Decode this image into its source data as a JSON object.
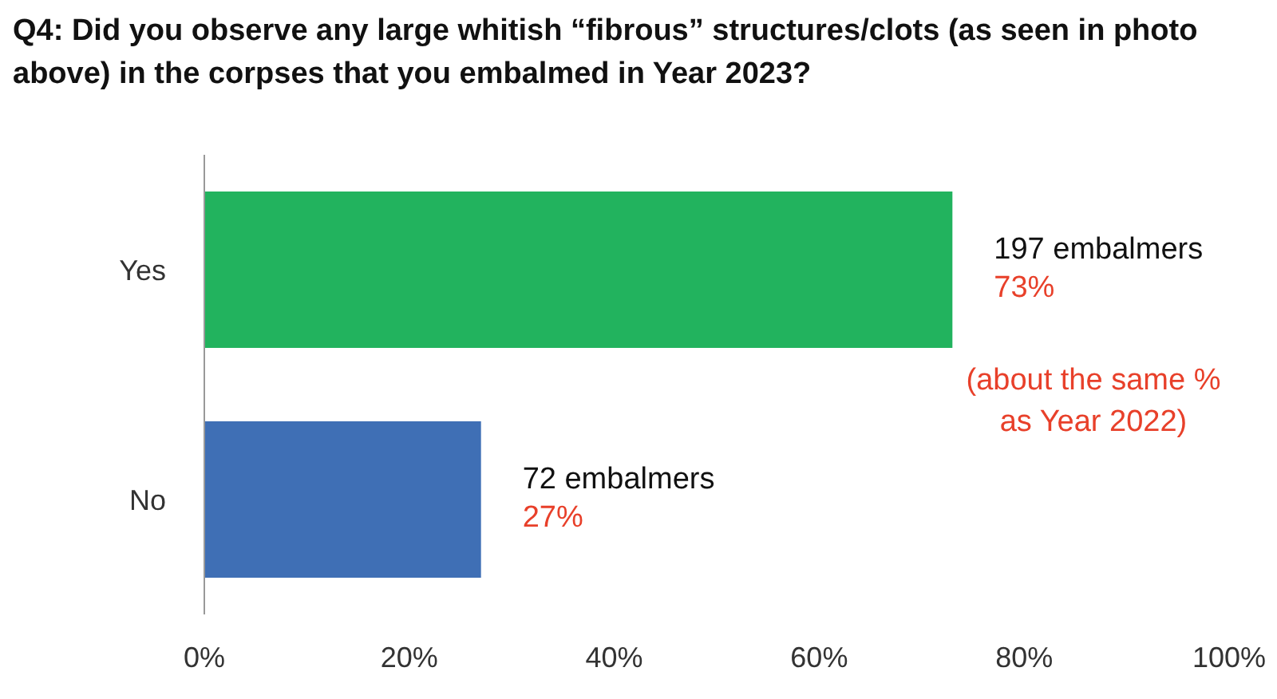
{
  "chart_data": {
    "type": "bar",
    "orientation": "horizontal",
    "title": "Q4: Did you observe any large whitish “fibrous” structures/clots (as seen in photo above) in the corpses that you embalmed in Year 2023?",
    "categories": [
      "Yes",
      "No"
    ],
    "values": [
      73,
      27
    ],
    "colors": [
      "#22b35e",
      "#3f6fb5"
    ],
    "value_labels": [
      "197 embalmers\n73%",
      "72 embalmers\n27%"
    ],
    "xlim": [
      0,
      100
    ],
    "xticks": [
      {
        "value": 0,
        "label": "0%"
      },
      {
        "value": 20,
        "label": "20%"
      },
      {
        "value": 40,
        "label": "40%"
      },
      {
        "value": 60,
        "label": "60%"
      },
      {
        "value": 80,
        "label": "80%"
      },
      {
        "value": 100,
        "label": "100%"
      }
    ],
    "annotations": [
      "(about the same % as Year 2022)"
    ],
    "grid": false,
    "legend": false
  }
}
